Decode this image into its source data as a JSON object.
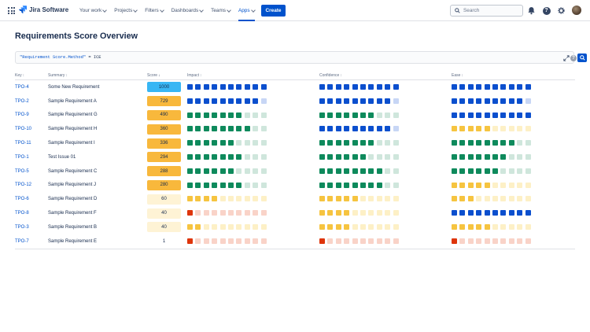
{
  "nav": {
    "product": "Jira Software",
    "menu": [
      {
        "label": "Your work",
        "chevron": true,
        "active": false
      },
      {
        "label": "Projects",
        "chevron": true,
        "active": false
      },
      {
        "label": "Filters",
        "chevron": true,
        "active": false
      },
      {
        "label": "Dashboards",
        "chevron": true,
        "active": false
      },
      {
        "label": "Teams",
        "chevron": true,
        "active": false
      },
      {
        "label": "Apps",
        "chevron": true,
        "active": true
      }
    ],
    "create_label": "Create",
    "search_placeholder": "Search",
    "icons": [
      "apps-grid-icon",
      "jira-logo-icon",
      "search-icon",
      "notifications-icon",
      "help-icon",
      "settings-icon",
      "avatar"
    ]
  },
  "page": {
    "title": "Requirements Score Overview",
    "query_field": "\"Requirement Score.Method\"",
    "query_op": " = ",
    "query_value": "ICE"
  },
  "columns": {
    "key": "Key",
    "summary": "Summary",
    "score": "Score",
    "impact": "Impact",
    "confidence": "Confidence",
    "ease": "Ease"
  },
  "colors": {
    "accent": "#0052cc",
    "blue": "#0b4fce",
    "blue_light": "#c7d6f5",
    "green": "#0e8a5c",
    "green_light": "#cfe6dc",
    "yellow": "#f6c440",
    "yellow_light": "#fdf0c6",
    "red": "#de350b",
    "red_light": "#f9d3c8",
    "score_cyan": "#38b6f4",
    "score_orange": "#f8b83c",
    "score_yellow": "#fdd36b",
    "score_pale": "#fef3d5"
  },
  "rows": [
    {
      "key": "TPO-4",
      "summary": "Some New Requirement",
      "score": "1000",
      "score_color": "cyan",
      "impact": 10,
      "confidence": 10,
      "ease": 10
    },
    {
      "key": "TPO-2",
      "summary": "Sample Requirement A",
      "score": "729",
      "score_color": "orange",
      "impact": 9,
      "confidence": 9,
      "ease": 9
    },
    {
      "key": "TPO-9",
      "summary": "Sample Requirement G",
      "score": "490",
      "score_color": "orange",
      "impact": 7,
      "confidence": 7,
      "ease": 10
    },
    {
      "key": "TPO-10",
      "summary": "Sample Requirement H",
      "score": "360",
      "score_color": "orange",
      "impact": 8,
      "confidence": 9,
      "ease": 5
    },
    {
      "key": "TPO-11",
      "summary": "Sample Requirement I",
      "score": "336",
      "score_color": "orange",
      "impact": 6,
      "confidence": 7,
      "ease": 8
    },
    {
      "key": "TPO-1",
      "summary": "Test Issue 01",
      "score": "294",
      "score_color": "orange",
      "impact": 7,
      "confidence": 6,
      "ease": 7
    },
    {
      "key": "TPO-5",
      "summary": "Sample Requirement C",
      "score": "288",
      "score_color": "orange",
      "impact": 6,
      "confidence": 8,
      "ease": 6
    },
    {
      "key": "TPO-12",
      "summary": "Sample Requirement J",
      "score": "280",
      "score_color": "orange",
      "impact": 7,
      "confidence": 8,
      "ease": 5
    },
    {
      "key": "TPO-6",
      "summary": "Sample Requirement D",
      "score": "60",
      "score_color": "pale",
      "impact": 4,
      "confidence": 5,
      "ease": 3
    },
    {
      "key": "TPO-8",
      "summary": "Sample Requirement F",
      "score": "40",
      "score_color": "pale",
      "impact": 1,
      "confidence": 4,
      "ease": 10
    },
    {
      "key": "TPO-3",
      "summary": "Sample Requirement B",
      "score": "40",
      "score_color": "pale",
      "impact": 2,
      "confidence": 4,
      "ease": 5
    },
    {
      "key": "TPO-7",
      "summary": "Sample Requirement E",
      "score": "1",
      "score_color": "none",
      "impact": 1,
      "confidence": 1,
      "ease": 1
    }
  ]
}
